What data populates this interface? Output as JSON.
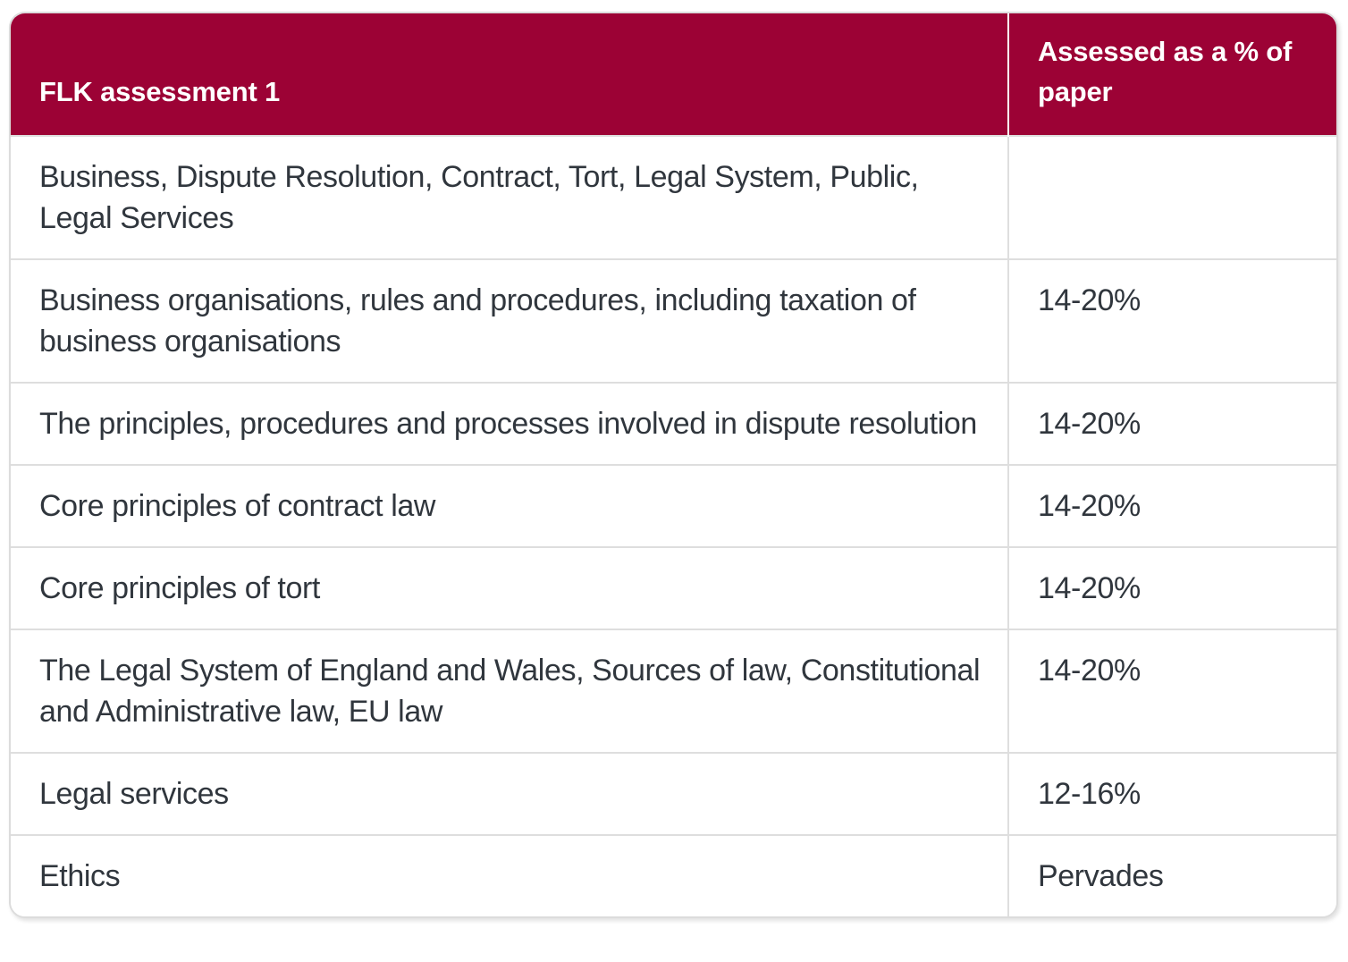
{
  "table": {
    "headers": [
      "FLK assessment 1",
      "Assessed as a % of paper"
    ],
    "rows": [
      {
        "topic": "Business, Dispute Resolution, Contract, Tort, Legal System, Public, Legal Services",
        "value": ""
      },
      {
        "topic": "Business organisations, rules and procedures, including taxation of business organisations",
        "value": "14-20%"
      },
      {
        "topic": "The principles, procedures and processes involved in dispute resolution",
        "value": "14-20%"
      },
      {
        "topic": "Core principles of contract law",
        "value": "14-20%"
      },
      {
        "topic": "Core principles of tort",
        "value": "14-20%"
      },
      {
        "topic": "The Legal System of England and Wales, Sources of law, Constitutional and Administrative law, EU law",
        "value": "14-20%"
      },
      {
        "topic": "Legal services",
        "value": "12-16%"
      },
      {
        "topic": "Ethics",
        "value": "Pervades"
      }
    ],
    "colors": {
      "header_bg": "#9c0235",
      "header_text": "#ffffff",
      "body_text": "#30363d",
      "row_border": "#dedede",
      "card_border": "#dcdcdc"
    }
  }
}
